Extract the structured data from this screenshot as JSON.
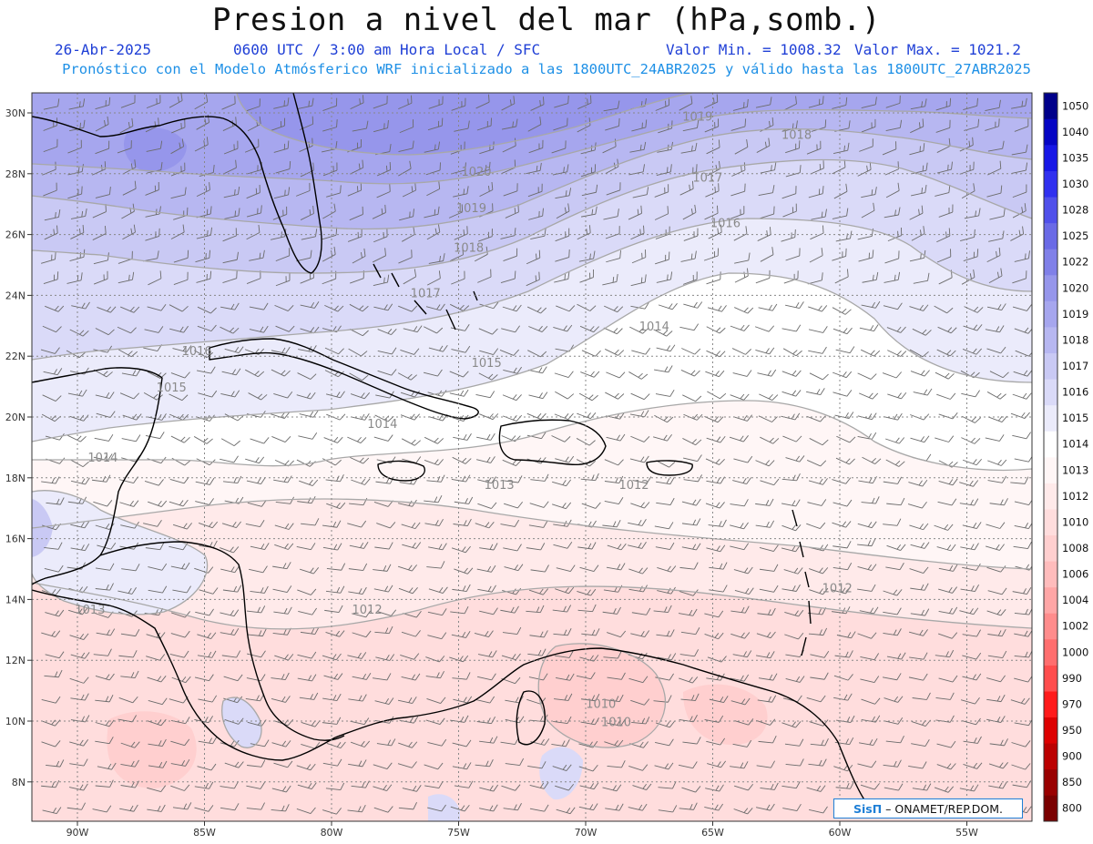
{
  "header": {
    "title": "Presion a nivel del mar (hPa,somb.)",
    "date": "26-Abr-2025",
    "time_info": "0600 UTC / 3:00 am Hora Local / SFC",
    "valor_min": "Valor Min. = 1008.32",
    "valor_max": "Valor Max. = 1021.2",
    "forecast_info": "Pronóstico con el Modelo Atmósferico WRF inicializado a las 1800UTC_24ABR2025 y válido hasta las  1800UTC_27ABR2025"
  },
  "axes": {
    "lat_labels": [
      "30N",
      "28N",
      "26N",
      "24N",
      "22N",
      "20N",
      "18N",
      "16N",
      "14N",
      "12N",
      "10N",
      "8N"
    ],
    "lat_values": [
      30,
      28,
      26,
      24,
      22,
      20,
      18,
      16,
      14,
      12,
      10,
      8
    ],
    "lon_labels": [
      "90W",
      "85W",
      "80W",
      "75W",
      "70W",
      "65W",
      "60W",
      "55W"
    ],
    "lon_values": [
      -90,
      -85,
      -80,
      -75,
      -70,
      -65,
      -60,
      -55
    ]
  },
  "colorbar": {
    "levels": [
      "800",
      "850",
      "900",
      "950",
      "970",
      "990",
      "1000",
      "1002",
      "1004",
      "1006",
      "1008",
      "1010",
      "1012",
      "1013",
      "1014",
      "1015",
      "1016",
      "1017",
      "1018",
      "1019",
      "1020",
      "1022",
      "1025",
      "1028",
      "1030",
      "1035",
      "1040",
      "1050"
    ],
    "colors": [
      "#7a0000",
      "#990000",
      "#bb0000",
      "#dd0000",
      "#ff1a1a",
      "#ff4d4d",
      "#ff6e6e",
      "#ff8c8c",
      "#ffa6a6",
      "#ffbcbc",
      "#ffcfcf",
      "#ffdddd",
      "#ffeaea",
      "#fff6f6",
      "#ffffff",
      "#ebebfb",
      "#dadaf8",
      "#c9c9f4",
      "#b7b7f1",
      "#a6a6ee",
      "#9696eb",
      "#8080e8",
      "#6a6ae6",
      "#5050ea",
      "#3030ef",
      "#1717e6",
      "#0505c4",
      "#00008a"
    ]
  },
  "isobar_labels": [
    {
      "text": "1019",
      "lon": -65.6,
      "lat": 29.8
    },
    {
      "text": "1018",
      "lon": -61.7,
      "lat": 29.2
    },
    {
      "text": "1017",
      "lon": -65.2,
      "lat": 27.8
    },
    {
      "text": "1016",
      "lon": -64.5,
      "lat": 26.3
    },
    {
      "text": "1020",
      "lon": -74.3,
      "lat": 28.0
    },
    {
      "text": "1019",
      "lon": -74.5,
      "lat": 26.8
    },
    {
      "text": "1018",
      "lon": -74.6,
      "lat": 25.5
    },
    {
      "text": "1017",
      "lon": -76.3,
      "lat": 24.0
    },
    {
      "text": "1016",
      "lon": -85.3,
      "lat": 22.1
    },
    {
      "text": "1015",
      "lon": -73.9,
      "lat": 21.7
    },
    {
      "text": "1014",
      "lon": -67.3,
      "lat": 22.9
    },
    {
      "text": "1015",
      "lon": -86.3,
      "lat": 20.9
    },
    {
      "text": "1014",
      "lon": -78.0,
      "lat": 19.7
    },
    {
      "text": "1014",
      "lon": -89.0,
      "lat": 18.6
    },
    {
      "text": "1013",
      "lon": -73.4,
      "lat": 17.7
    },
    {
      "text": "1012",
      "lon": -68.1,
      "lat": 17.7
    },
    {
      "text": "1013",
      "lon": -89.5,
      "lat": 13.6
    },
    {
      "text": "1012",
      "lon": -78.6,
      "lat": 13.6
    },
    {
      "text": "1012",
      "lon": -60.1,
      "lat": 14.3
    },
    {
      "text": "1010",
      "lon": -69.4,
      "lat": 10.5
    },
    {
      "text": "1010",
      "lon": -68.8,
      "lat": 9.9
    }
  ],
  "credit": {
    "logo": "SisΠ",
    "text": "– ONAMET/REP.DOM."
  }
}
